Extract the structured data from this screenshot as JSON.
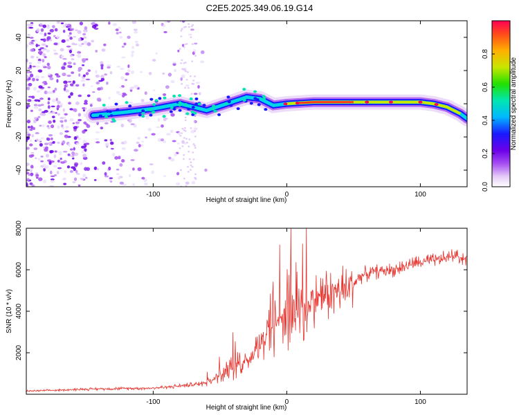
{
  "chart_data": [
    {
      "type": "heatmap",
      "title": "C2E5.2025.349.06.19.G14",
      "xlabel": "Height of straight line (km)",
      "ylabel": "Frequency (Hz)",
      "xlim": [
        -195,
        135
      ],
      "ylim": [
        -50,
        50
      ],
      "xticks": [
        -100,
        0,
        100
      ],
      "yticks": [
        -40,
        -20,
        0,
        20,
        40
      ],
      "colorbar": {
        "label": "Normalized spectral amplitude",
        "range": [
          0,
          1
        ],
        "ticks": [
          0.0,
          0.2,
          0.4,
          0.6,
          0.8
        ]
      },
      "ridge": {
        "x": [
          -145,
          -120,
          -100,
          -80,
          -60,
          -45,
          -30,
          -20,
          -10,
          0,
          20,
          40,
          60,
          80,
          100,
          110,
          120,
          125,
          130,
          135
        ],
        "frequency": [
          -7,
          -5,
          -3,
          0,
          -4,
          0,
          4,
          3,
          -1,
          0,
          1,
          1,
          1,
          1,
          1,
          0,
          -2,
          -4,
          -6,
          -9
        ]
      }
    },
    {
      "type": "line",
      "title": "",
      "xlabel": "Height of straight line (km)",
      "ylabel": "SNR (10 * v/v)",
      "xlim": [
        -195,
        135
      ],
      "ylim": [
        0,
        8000
      ],
      "xticks": [
        -100,
        0,
        100
      ],
      "yticks": [
        2000,
        4000,
        6000,
        8000
      ],
      "series": [
        {
          "name": "SNR",
          "color": "#e8322c",
          "x": [
            -195,
            -170,
            -150,
            -120,
            -100,
            -80,
            -65,
            -55,
            -45,
            -35,
            -25,
            -15,
            -5,
            5,
            10,
            15,
            25,
            35,
            45,
            55,
            65,
            80,
            95,
            105,
            115,
            125,
            135
          ],
          "y": [
            150,
            200,
            250,
            280,
            300,
            400,
            500,
            700,
            1100,
            1400,
            1900,
            2900,
            3700,
            3900,
            4400,
            4200,
            4800,
            4900,
            5000,
            5700,
            5900,
            6000,
            6300,
            6400,
            6500,
            6700,
            6500
          ]
        }
      ]
    }
  ]
}
